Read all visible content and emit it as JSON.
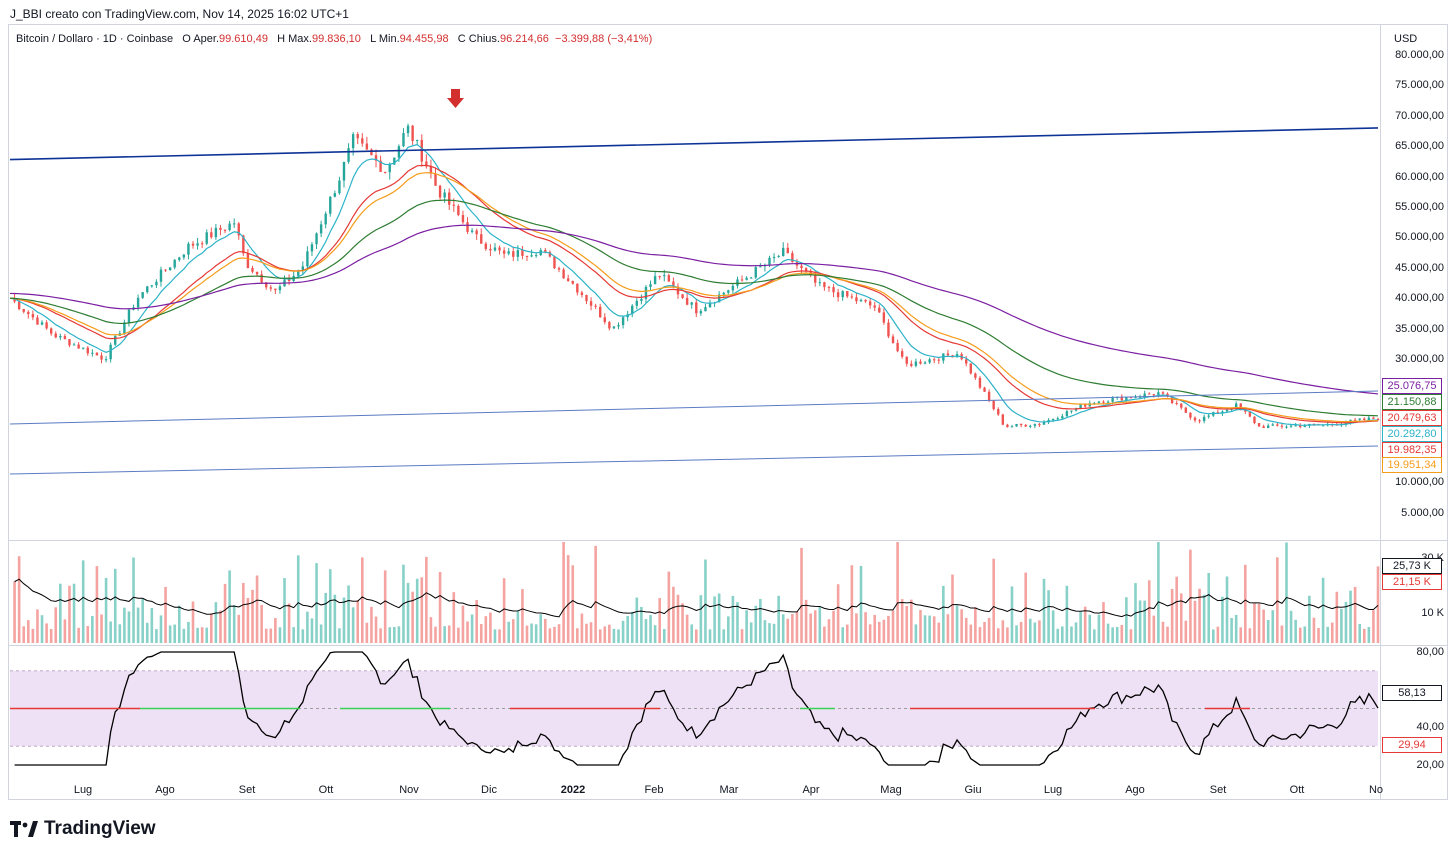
{
  "caption": "J_BBI creato con TradingView.com, Nov 14, 2025 16:02 UTC+1",
  "legend": {
    "symbol": "Bitcoin / Dollaro · 1D · Coinbase",
    "o_label": "O",
    "open_label": "Aper.",
    "open": "99.610,49",
    "h_label": "H",
    "high_label": "Max.",
    "high": "99.836,10",
    "l_label": "L",
    "low_label": "Min.",
    "low": "94.455,98",
    "c_label": "C",
    "close_label": "Chius.",
    "close": "96.214,66",
    "change": "−3.399,88 (−3,41%)"
  },
  "currency": "USD",
  "brand": "TradingView",
  "colors": {
    "up": "#26a69a",
    "down": "#ef5350",
    "trend": "#0d3396",
    "channel": "#5b7bc4",
    "ema_cyan": "#2cb3c8",
    "ema_red": "#e53935",
    "ema_orange": "#f59c1a",
    "ema_green": "#2e7d32",
    "ema_purple": "#7b1fa2",
    "arrow": "#d32f2f",
    "rsi_band": "#efe1f5",
    "rsi_line": "#000000"
  },
  "price_axis_labels": [
    "80.000,00",
    "75.000,00",
    "70.000,00",
    "65.000,00",
    "60.000,00",
    "55.000,00",
    "50.000,00",
    "45.000,00",
    "40.000,00",
    "35.000,00",
    "30.000,00",
    "10.000,00",
    "5.000,00"
  ],
  "price_tags": [
    {
      "text": "25.076,75",
      "color": "#7b1fa2"
    },
    {
      "text": "21.150,88",
      "color": "#2e7d32"
    },
    {
      "text": "20.479,63",
      "color": "#e53935"
    },
    {
      "text": "20.292,80",
      "color": "#2cb3c8"
    },
    {
      "text": "19.982,35",
      "color": "#e53935"
    },
    {
      "text": "19.951,34",
      "color": "#f59c1a"
    }
  ],
  "volume_axis": {
    "top_label": "30 K",
    "mid_label": "10 K",
    "tags": [
      {
        "text": "25,73 K",
        "color": "#131722"
      },
      {
        "text": "21,15 K",
        "color": "#e53935"
      }
    ]
  },
  "rsi_axis": {
    "labels": [
      "80,00",
      "40,00",
      "20,00"
    ],
    "tags": [
      {
        "text": "58,13",
        "color": "#131722"
      },
      {
        "text": "29,94",
        "color": "#e53935"
      }
    ]
  },
  "x_labels": [
    {
      "text": "Lug",
      "bold": false
    },
    {
      "text": "Ago",
      "bold": false
    },
    {
      "text": "Set",
      "bold": false
    },
    {
      "text": "Ott",
      "bold": false
    },
    {
      "text": "Nov",
      "bold": false
    },
    {
      "text": "Dic",
      "bold": false
    },
    {
      "text": "2022",
      "bold": true
    },
    {
      "text": "Feb",
      "bold": false
    },
    {
      "text": "Mar",
      "bold": false
    },
    {
      "text": "Apr",
      "bold": false
    },
    {
      "text": "Mag",
      "bold": false
    },
    {
      "text": "Giu",
      "bold": false
    },
    {
      "text": "Lug",
      "bold": false
    },
    {
      "text": "Ago",
      "bold": false
    },
    {
      "text": "Set",
      "bold": false
    },
    {
      "text": "Ott",
      "bold": false
    },
    {
      "text": "No",
      "bold": false
    }
  ],
  "chart_data": {
    "type": "line",
    "title": "Bitcoin / Dollaro · 1D · Coinbase",
    "series": [
      {
        "name": "BTCUSD",
        "points": [
          [
            "2021-06-15",
            40000
          ],
          [
            "2021-07-01",
            34000
          ],
          [
            "2021-07-20",
            30000
          ],
          [
            "2021-08-01",
            40000
          ],
          [
            "2021-08-20",
            48500
          ],
          [
            "2021-09-06",
            52500
          ],
          [
            "2021-09-10",
            46000
          ],
          [
            "2021-09-21",
            41000
          ],
          [
            "2021-10-01",
            45000
          ],
          [
            "2021-10-15",
            60000
          ],
          [
            "2021-10-20",
            66000
          ],
          [
            "2021-11-01",
            61000
          ],
          [
            "2021-11-09",
            68000
          ],
          [
            "2021-11-15",
            63000
          ],
          [
            "2021-11-20",
            58000
          ],
          [
            "2021-12-04",
            50000
          ],
          [
            "2021-12-15",
            47000
          ],
          [
            "2021-12-28",
            48000
          ],
          [
            "2022-01-10",
            42000
          ],
          [
            "2022-01-24",
            35000
          ],
          [
            "2022-02-10",
            44000
          ],
          [
            "2022-02-24",
            38000
          ],
          [
            "2022-03-28",
            47500
          ],
          [
            "2022-04-10",
            42000
          ],
          [
            "2022-05-01",
            38500
          ],
          [
            "2022-05-12",
            29000
          ],
          [
            "2022-06-01",
            31000
          ],
          [
            "2022-06-18",
            19000
          ],
          [
            "2022-07-01",
            19500
          ],
          [
            "2022-07-20",
            23000
          ],
          [
            "2022-08-14",
            24500
          ],
          [
            "2022-08-28",
            20000
          ],
          [
            "2022-09-12",
            22500
          ],
          [
            "2022-09-20",
            19000
          ],
          [
            "2022-10-15",
            19300
          ],
          [
            "2022-11-01",
            20300
          ]
        ]
      },
      {
        "name": "trendline",
        "points": [
          [
            "2021-06-15",
            62800
          ],
          [
            "2022-11-03",
            68000
          ]
        ]
      }
    ],
    "ylim": [
      0,
      80000
    ],
    "volume_range": [
      0,
      30000
    ],
    "rsi_range": [
      20,
      80
    ],
    "rsi_bands": [
      30,
      70
    ],
    "grid": false,
    "legend_position": "top-left"
  }
}
